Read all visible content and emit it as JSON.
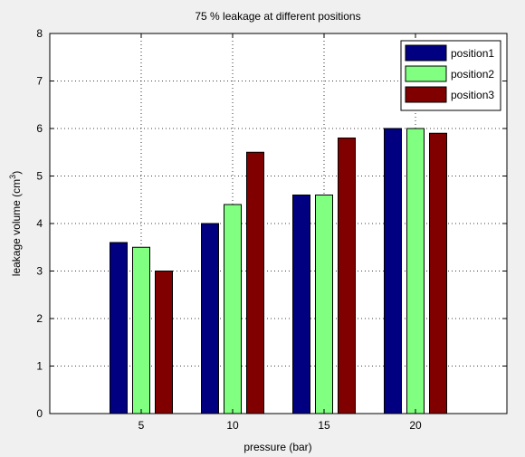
{
  "chart_data": {
    "type": "bar",
    "title": "75 % leakage at different positions",
    "xlabel": "pressure (bar)",
    "ylabel_main": "leakage volume (cm",
    "ylabel_sup": "3",
    "ylabel_close": ")",
    "categories": [
      "5",
      "10",
      "15",
      "20"
    ],
    "ylim": [
      0,
      8
    ],
    "yticks": [
      "0",
      "1",
      "2",
      "3",
      "4",
      "5",
      "6",
      "7",
      "8"
    ],
    "grid": true,
    "legend_position": "top-right",
    "series": [
      {
        "name": "position1",
        "color": "#000080",
        "values": [
          3.6,
          4.0,
          4.6,
          6.0
        ]
      },
      {
        "name": "position2",
        "color": "#80ff80",
        "values": [
          3.5,
          4.4,
          4.6,
          6.0
        ]
      },
      {
        "name": "position3",
        "color": "#800000",
        "values": [
          3.0,
          5.5,
          5.8,
          5.9
        ]
      }
    ]
  }
}
